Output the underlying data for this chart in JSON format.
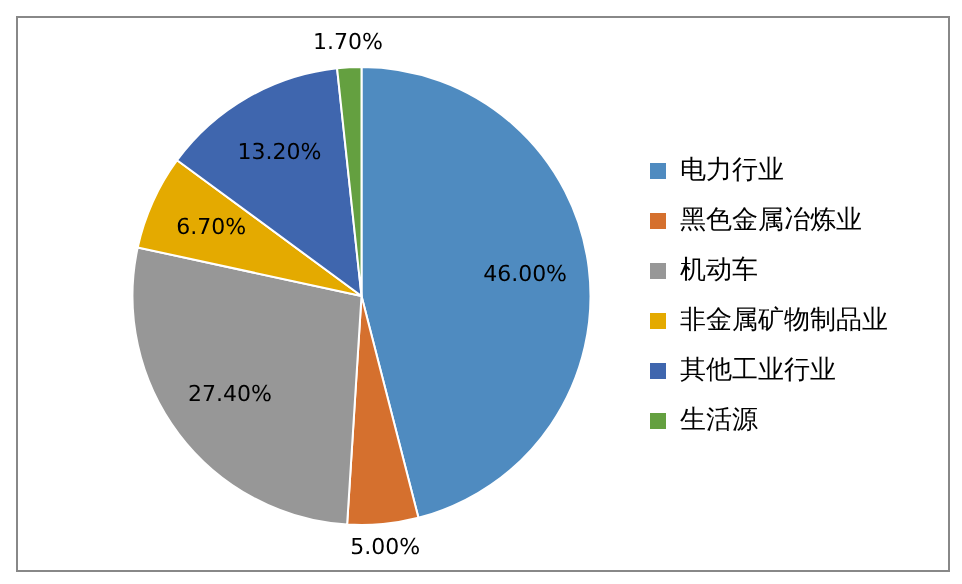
{
  "chart_data": {
    "type": "pie",
    "categories": [
      "电力行业",
      "黑色金属冶炼业",
      "机动车",
      "非金属矿物制品业",
      "其他工业行业",
      "生活源"
    ],
    "values": [
      46.0,
      5.0,
      27.4,
      6.7,
      13.2,
      1.7
    ],
    "value_labels": [
      "46.00%",
      "5.00%",
      "27.40%",
      "6.70%",
      "13.20%",
      "1.70%"
    ],
    "colors": [
      "#4f8bc0",
      "#d5702e",
      "#979797",
      "#e4aa00",
      "#3f66ae",
      "#64a040"
    ],
    "legend": "right"
  }
}
